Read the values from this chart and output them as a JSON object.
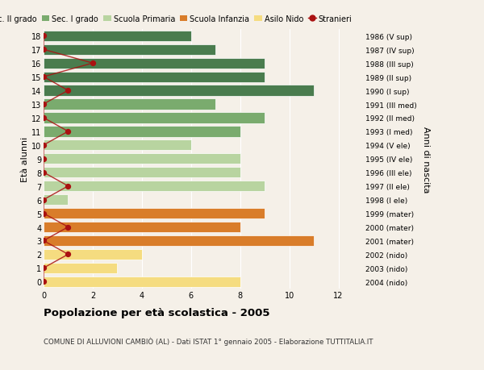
{
  "ages": [
    18,
    17,
    16,
    15,
    14,
    13,
    12,
    11,
    10,
    9,
    8,
    7,
    6,
    5,
    4,
    3,
    2,
    1,
    0
  ],
  "anni_nascita": [
    "1986 (V sup)",
    "1987 (IV sup)",
    "1988 (III sup)",
    "1989 (II sup)",
    "1990 (I sup)",
    "1991 (III med)",
    "1992 (II med)",
    "1993 (I med)",
    "1994 (V ele)",
    "1995 (IV ele)",
    "1996 (III ele)",
    "1997 (II ele)",
    "1998 (I ele)",
    "1999 (mater)",
    "2000 (mater)",
    "2001 (mater)",
    "2002 (nido)",
    "2003 (nido)",
    "2004 (nido)"
  ],
  "bar_values": [
    6,
    7,
    9,
    9,
    11,
    7,
    9,
    8,
    6,
    8,
    8,
    9,
    1,
    9,
    8,
    11,
    4,
    3,
    8
  ],
  "bar_colors": [
    "#4a7c4e",
    "#4a7c4e",
    "#4a7c4e",
    "#4a7c4e",
    "#4a7c4e",
    "#7aab6e",
    "#7aab6e",
    "#7aab6e",
    "#b8d4a0",
    "#b8d4a0",
    "#b8d4a0",
    "#b8d4a0",
    "#b8d4a0",
    "#d97d2a",
    "#d97d2a",
    "#d97d2a",
    "#f5dc80",
    "#f5dc80",
    "#f5dc80"
  ],
  "stranieri_x": [
    0,
    0,
    2,
    0,
    1,
    0,
    0,
    1,
    0,
    0,
    0,
    1,
    0,
    0,
    1,
    0,
    1,
    0,
    0
  ],
  "title": "Popolazione per età scolastica - 2005",
  "subtitle": "COMUNE DI ALLUVIONI CAMBIÒ (AL) - Dati ISTAT 1° gennaio 2005 - Elaborazione TUTTITALIA.IT",
  "ylabel": "Età alunni",
  "right_ylabel": "Anni di nascita",
  "xlim": [
    0,
    13
  ],
  "xticks": [
    0,
    2,
    4,
    6,
    8,
    10,
    12
  ],
  "color_sec2": "#4a7c4e",
  "color_sec1": "#7aab6e",
  "color_primaria": "#b8d4a0",
  "color_infanzia": "#d97d2a",
  "color_nido": "#f5dc80",
  "color_stranieri": "#aa1111",
  "legend_labels": [
    "Sec. II grado",
    "Sec. I grado",
    "Scuola Primaria",
    "Scuola Infanzia",
    "Asilo Nido",
    "Stranieri"
  ],
  "bg_color": "#f5f0e8",
  "bar_height": 0.78
}
